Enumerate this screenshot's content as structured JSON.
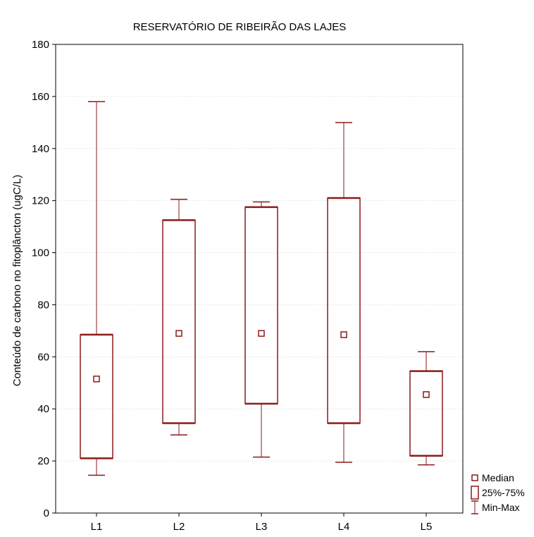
{
  "chart_data": {
    "type": "box",
    "title": "RESERVATÓRIO DE RIBEIRÃO DAS LAJES",
    "xlabel": "",
    "ylabel": "Conteúdo de carbono no fitoplâncton (ugC/L)",
    "ylim": [
      0,
      180
    ],
    "yticks": [
      0,
      20,
      40,
      60,
      80,
      100,
      120,
      140,
      160,
      180
    ],
    "grid": true,
    "legend_position": "bottom-right",
    "categories": [
      "L1",
      "L2",
      "L3",
      "L4",
      "L5"
    ],
    "boxes": [
      {
        "category": "L1",
        "min": 14.5,
        "q1": 21,
        "median": 51.5,
        "q3": 68.5,
        "max": 158
      },
      {
        "category": "L2",
        "min": 30,
        "q1": 34.5,
        "median": 69,
        "q3": 112.5,
        "max": 120.5
      },
      {
        "category": "L3",
        "min": 21.5,
        "q1": 42,
        "median": 69,
        "q3": 117.5,
        "max": 119.5
      },
      {
        "category": "L4",
        "min": 19.5,
        "q1": 34.5,
        "median": 68.5,
        "q3": 121,
        "max": 150
      },
      {
        "category": "L5",
        "min": 18.5,
        "q1": 22,
        "median": 45.5,
        "q3": 54.5,
        "max": 62
      }
    ],
    "legend": [
      {
        "symbol": "median",
        "label": "Median"
      },
      {
        "symbol": "box",
        "label": "25%-75%"
      },
      {
        "symbol": "whisker",
        "label": "Min-Max"
      }
    ],
    "colors": {
      "series": "#8b1a1a",
      "frame": "#000000",
      "grid": "#d9d9d9"
    }
  }
}
